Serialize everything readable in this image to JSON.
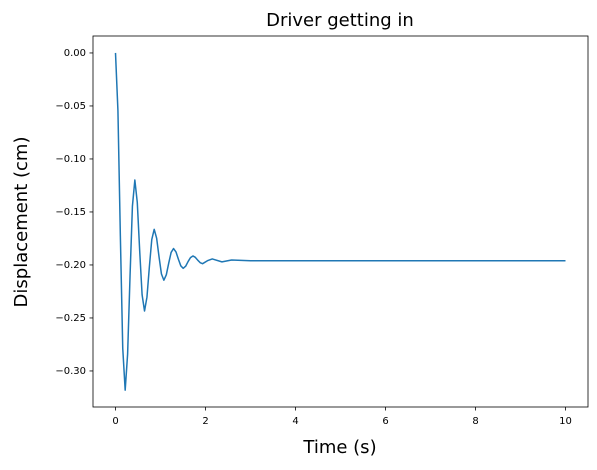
{
  "chart_data": {
    "type": "line",
    "title": "Driver getting in",
    "x_label": "Time (s)",
    "y_label": "Displacement (cm)",
    "x": [
      0,
      0.054,
      0.108,
      0.161,
      0.215,
      0.269,
      0.323,
      0.376,
      0.43,
      0.484,
      0.538,
      0.591,
      0.645,
      0.699,
      0.753,
      0.806,
      0.86,
      0.914,
      0.968,
      1.021,
      1.075,
      1.129,
      1.183,
      1.236,
      1.29,
      1.344,
      1.398,
      1.451,
      1.505,
      1.559,
      1.613,
      1.666,
      1.72,
      1.774,
      1.828,
      1.881,
      1.935,
      2.043,
      2.15,
      2.365,
      2.58,
      3.0,
      10
    ],
    "series": [
      {
        "name": "Displacement",
        "color": "#1f77b4",
        "values": [
          0,
          -0.0544,
          -0.1728,
          -0.2786,
          -0.3181,
          -0.2842,
          -0.2105,
          -0.1445,
          -0.1199,
          -0.141,
          -0.187,
          -0.2281,
          -0.2434,
          -0.2303,
          -0.2016,
          -0.176,
          -0.1664,
          -0.1747,
          -0.1925,
          -0.2085,
          -0.2144,
          -0.2093,
          -0.1982,
          -0.1882,
          -0.1845,
          -0.1877,
          -0.1946,
          -0.2008,
          -0.2032,
          -0.2012,
          -0.1968,
          -0.1931,
          -0.1915,
          -0.1928,
          -0.1955,
          -0.1978,
          -0.1988,
          -0.196,
          -0.1943,
          -0.1971,
          -0.1953,
          -0.196,
          -0.196
        ]
      }
    ],
    "xlim": [
      -0.5,
      10.5
    ],
    "ylim": [
      -0.334,
      0.016
    ],
    "xticks": [
      0,
      2,
      4,
      6,
      8,
      10
    ],
    "yticks": [
      {
        "value": 0,
        "label": "0.00"
      },
      {
        "value": -0.05,
        "label": "−0.05"
      },
      {
        "value": -0.1,
        "label": "−0.10"
      },
      {
        "value": -0.15,
        "label": "−0.15"
      },
      {
        "value": -0.2,
        "label": "−0.20"
      },
      {
        "value": -0.25,
        "label": "−0.25"
      },
      {
        "value": -0.3,
        "label": "−0.30"
      }
    ]
  }
}
